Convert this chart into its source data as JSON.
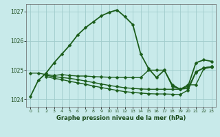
{
  "title": "Graphe pression niveau de la mer (hPa)",
  "bg_color": "#c8eaea",
  "grid_color": "#a0cccc",
  "line_color": "#1a5c1a",
  "xlim": [
    -0.5,
    23.5
  ],
  "ylim": [
    1023.75,
    1027.25
  ],
  "yticks": [
    1024,
    1025,
    1026,
    1027
  ],
  "xticks": [
    0,
    1,
    2,
    3,
    4,
    5,
    6,
    7,
    8,
    9,
    10,
    11,
    12,
    13,
    14,
    15,
    16,
    17,
    18,
    19,
    20,
    21,
    22,
    23
  ],
  "series": [
    {
      "x": [
        0,
        1,
        2,
        3,
        4,
        5,
        6,
        7,
        8,
        9,
        10,
        11,
        12,
        13,
        14,
        15,
        16,
        17,
        18,
        19,
        20,
        21,
        22,
        23
      ],
      "y": [
        1024.1,
        1024.65,
        1024.9,
        1025.25,
        1025.55,
        1025.85,
        1026.2,
        1026.45,
        1026.65,
        1026.85,
        1026.97,
        1027.05,
        1026.82,
        1026.55,
        1025.55,
        1025.05,
        1024.75,
        1025.0,
        1024.5,
        1024.35,
        1024.45,
        1025.25,
        1025.35,
        1025.3
      ],
      "marker": "D",
      "markersize": 2.5,
      "linewidth": 1.3,
      "linestyle": "-"
    },
    {
      "x": [
        0,
        1,
        2,
        3,
        4,
        5,
        6,
        7,
        8,
        9,
        10,
        11,
        12,
        13,
        14,
        15,
        16,
        17,
        18,
        19,
        20,
        21,
        22,
        23
      ],
      "y": [
        1024.9,
        1024.9,
        1024.85,
        1024.82,
        1024.85,
        1024.82,
        1024.8,
        1024.8,
        1024.78,
        1024.77,
        1024.76,
        1024.76,
        1024.75,
        1024.75,
        1024.75,
        1025.0,
        1025.0,
        1025.0,
        1024.45,
        1024.35,
        1024.5,
        1024.5,
        1025.05,
        1025.1
      ],
      "marker": "D",
      "markersize": 2.5,
      "linewidth": 1.0,
      "linestyle": "-"
    },
    {
      "x": [
        2,
        3,
        4,
        5,
        6,
        7,
        8,
        9,
        10,
        11,
        12,
        13,
        14,
        15,
        16,
        17,
        18,
        19,
        20,
        21,
        22,
        23
      ],
      "y": [
        1024.82,
        1024.78,
        1024.75,
        1024.72,
        1024.68,
        1024.63,
        1024.58,
        1024.53,
        1024.48,
        1024.44,
        1024.4,
        1024.38,
        1024.36,
        1024.35,
        1024.35,
        1024.35,
        1024.35,
        1024.35,
        1024.38,
        1024.95,
        1025.08,
        1025.12
      ],
      "marker": "D",
      "markersize": 2.5,
      "linewidth": 1.0,
      "linestyle": "-"
    },
    {
      "x": [
        2,
        3,
        4,
        5,
        6,
        7,
        8,
        9,
        10,
        11,
        12,
        13,
        14,
        15,
        16,
        17,
        18,
        19,
        20,
        21,
        22,
        23
      ],
      "y": [
        1024.78,
        1024.72,
        1024.68,
        1024.62,
        1024.57,
        1024.52,
        1024.46,
        1024.41,
        1024.36,
        1024.31,
        1024.27,
        1024.24,
        1024.22,
        1024.2,
        1024.19,
        1024.19,
        1024.18,
        1024.17,
        1024.32,
        1024.92,
        1025.08,
        1025.12
      ],
      "marker": "D",
      "markersize": 2.5,
      "linewidth": 1.0,
      "linestyle": "-"
    }
  ]
}
